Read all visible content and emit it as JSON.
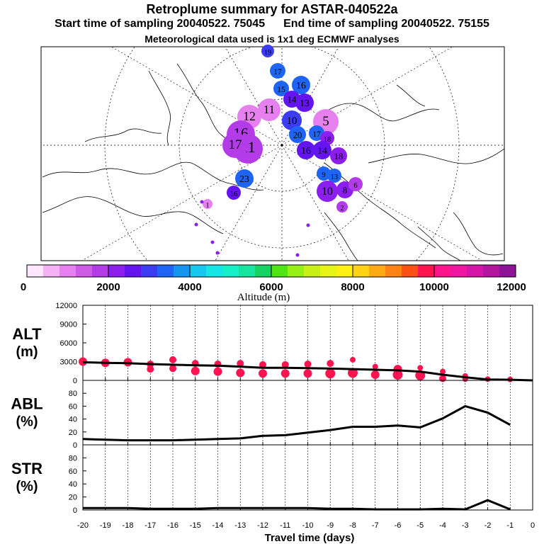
{
  "header": {
    "title": "Retroplume summary for ASTAR-040522a",
    "start_label": "Start time of sampling 20040522. 75045",
    "end_label": "End time of sampling 20040522. 75155",
    "met_label": "Meteorological data used is 1x1 deg ECMWF analyses"
  },
  "colorbar": {
    "title": "Altitude (m)",
    "ticks": [
      "0",
      "2000",
      "4000",
      "6000",
      "8000",
      "10000",
      "12000"
    ],
    "colors": [
      "#ffe6ff",
      "#f4b2f4",
      "#e680ee",
      "#d05ae8",
      "#b43ce8",
      "#8c1ef0",
      "#6414f0",
      "#3c3cf5",
      "#1e64f5",
      "#1496f0",
      "#14c8f0",
      "#14e6e6",
      "#14f0c8",
      "#14e6a0",
      "#14d264",
      "#50e614",
      "#96f014",
      "#c8f014",
      "#e6f514",
      "#fff014",
      "#ffd214",
      "#ffaa14",
      "#ff8214",
      "#ff5014",
      "#ff1450",
      "#ff148c",
      "#f014a0",
      "#d714a8",
      "#b414a0",
      "#8c1496"
    ]
  },
  "map": {
    "markers": [
      {
        "label": "19",
        "color": "#3c3cf5",
        "r": 9
      },
      {
        "label": "17",
        "color": "#1e64f5",
        "r": 11
      },
      {
        "label": "15",
        "color": "#1e64f5",
        "r": 11
      },
      {
        "label": "16",
        "color": "#1e64f5",
        "r": 13
      },
      {
        "label": "13",
        "color": "#6414f0",
        "r": 13
      },
      {
        "label": "14",
        "color": "#6414f0",
        "r": 12
      },
      {
        "label": "11",
        "color": "#e680ee",
        "r": 16
      },
      {
        "label": "12",
        "color": "#e680ee",
        "r": 17
      },
      {
        "label": "10",
        "color": "#3c3cf5",
        "r": 14
      },
      {
        "label": "5",
        "color": "#e680ee",
        "r": 18
      },
      {
        "label": "20",
        "color": "#1e64f5",
        "r": 12
      },
      {
        "label": "17",
        "color": "#1e64f5",
        "r": 11
      },
      {
        "label": "18",
        "color": "#8c1ef0",
        "r": 10
      },
      {
        "label": "16",
        "color": "#b43ce8",
        "r": 20
      },
      {
        "label": "11",
        "color": "#b43ce8",
        "r": 21
      },
      {
        "label": "17",
        "color": "#b43ce8",
        "r": 18
      },
      {
        "label": "16",
        "color": "#6414f0",
        "r": 13
      },
      {
        "label": "14",
        "color": "#6414f0",
        "r": 13
      },
      {
        "label": "18",
        "color": "#8c1ef0",
        "r": 12
      },
      {
        "label": "9",
        "color": "#1e64f5",
        "r": 10
      },
      {
        "label": "13",
        "color": "#1e64f5",
        "r": 10
      },
      {
        "label": "10",
        "color": "#8c1ef0",
        "r": 15
      },
      {
        "label": "8",
        "color": "#8c1ef0",
        "r": 12
      },
      {
        "label": "6",
        "color": "#b43ce8",
        "r": 10
      },
      {
        "label": "2",
        "color": "#b43ce8",
        "r": 8
      },
      {
        "label": "23",
        "color": "#1e64f5",
        "r": 13
      },
      {
        "label": "16",
        "color": "#6414f0",
        "r": 10
      },
      {
        "label": "1",
        "color": "#e680ee",
        "r": 7
      }
    ]
  },
  "chart_data": [
    {
      "type": "line",
      "title": "ALT (m)",
      "ylabel_top": "ALT",
      "ylabel_unit": "(m)",
      "x": [
        -20,
        -19,
        -18,
        -17,
        -16,
        -15,
        -14,
        -13,
        -12,
        -11,
        -10,
        -9,
        -8,
        -7,
        -6,
        -5,
        -4,
        -3,
        -2,
        -1,
        0
      ],
      "values": [
        2900,
        2800,
        2750,
        2600,
        2500,
        2400,
        2350,
        2200,
        2000,
        2000,
        1950,
        1900,
        1800,
        1700,
        1600,
        1400,
        900,
        500,
        150,
        100,
        0
      ],
      "ylim": [
        0,
        12000
      ],
      "yticks": [
        "12000",
        "9000",
        "6000",
        "3000",
        "0"
      ],
      "yticks_values": [
        12000,
        9000,
        6000,
        3000,
        0
      ],
      "scatter": [
        {
          "x": -20,
          "y": 3000,
          "s": 6
        },
        {
          "x": -19,
          "y": 2800,
          "s": 6
        },
        {
          "x": -18,
          "y": 2900,
          "s": 6
        },
        {
          "x": -17,
          "y": 2600,
          "s": 5
        },
        {
          "x": -17,
          "y": 1800,
          "s": 5
        },
        {
          "x": -16,
          "y": 3300,
          "s": 5
        },
        {
          "x": -16,
          "y": 1900,
          "s": 5
        },
        {
          "x": -15,
          "y": 2700,
          "s": 5
        },
        {
          "x": -15,
          "y": 1500,
          "s": 6
        },
        {
          "x": -14,
          "y": 2600,
          "s": 5
        },
        {
          "x": -14,
          "y": 1400,
          "s": 6
        },
        {
          "x": -13,
          "y": 2700,
          "s": 5
        },
        {
          "x": -13,
          "y": 1200,
          "s": 6
        },
        {
          "x": -12,
          "y": 2500,
          "s": 5
        },
        {
          "x": -12,
          "y": 1100,
          "s": 6
        },
        {
          "x": -11,
          "y": 2500,
          "s": 5
        },
        {
          "x": -11,
          "y": 1100,
          "s": 6
        },
        {
          "x": -10,
          "y": 2600,
          "s": 5
        },
        {
          "x": -10,
          "y": 1100,
          "s": 6
        },
        {
          "x": -9,
          "y": 2700,
          "s": 5
        },
        {
          "x": -9,
          "y": 1100,
          "s": 7
        },
        {
          "x": -8,
          "y": 3300,
          "s": 4
        },
        {
          "x": -8,
          "y": 1200,
          "s": 7
        },
        {
          "x": -7,
          "y": 2200,
          "s": 4
        },
        {
          "x": -7,
          "y": 900,
          "s": 6
        },
        {
          "x": -6,
          "y": 1800,
          "s": 6
        },
        {
          "x": -6,
          "y": 900,
          "s": 7
        },
        {
          "x": -5,
          "y": 2000,
          "s": 4
        },
        {
          "x": -5,
          "y": 800,
          "s": 7
        },
        {
          "x": -4,
          "y": 1400,
          "s": 4
        },
        {
          "x": -4,
          "y": 300,
          "s": 5
        },
        {
          "x": -3,
          "y": 700,
          "s": 4
        },
        {
          "x": -3,
          "y": 200,
          "s": 4
        },
        {
          "x": -2,
          "y": 200,
          "s": 4
        },
        {
          "x": -1,
          "y": 150,
          "s": 4
        }
      ]
    },
    {
      "type": "line",
      "title": "ABL (%)",
      "ylabel_top": "ABL",
      "ylabel_unit": "(%)",
      "x": [
        -20,
        -19,
        -18,
        -17,
        -16,
        -15,
        -14,
        -13,
        -12,
        -11,
        -10,
        -9,
        -8,
        -7,
        -6,
        -5,
        -4,
        -3,
        -2,
        -1,
        0
      ],
      "values": [
        9,
        8,
        7,
        7,
        7,
        8,
        9,
        10,
        14,
        15,
        19,
        23,
        28,
        28,
        30,
        27,
        41,
        60,
        50,
        31,
        null
      ],
      "ylim": [
        0,
        100
      ],
      "yticks": [
        "80",
        "60",
        "40",
        "20",
        "0"
      ],
      "yticks_values": [
        80,
        60,
        40,
        20,
        0
      ]
    },
    {
      "type": "line",
      "title": "STR (%)",
      "ylabel_top": "STR",
      "ylabel_unit": "(%)",
      "x": [
        -20,
        -19,
        -18,
        -17,
        -16,
        -15,
        -14,
        -13,
        -12,
        -11,
        -10,
        -9,
        -8,
        -7,
        -6,
        -5,
        -4,
        -3,
        -2,
        -1,
        0
      ],
      "values": [
        3,
        3,
        3,
        2,
        2,
        2,
        3,
        3,
        3,
        3,
        3,
        2,
        2,
        1,
        1,
        1,
        2,
        1,
        15,
        1,
        null
      ],
      "ylim": [
        0,
        100
      ],
      "yticks": [
        "80",
        "60",
        "40",
        "20",
        "0"
      ],
      "yticks_values": [
        80,
        60,
        40,
        20,
        0
      ]
    }
  ],
  "xaxis": {
    "label": "Travel time (days)",
    "ticks": [
      "-20",
      "-19",
      "-18",
      "-17",
      "-16",
      "-15",
      "-14",
      "-13",
      "-12",
      "-11",
      "-10",
      "-9",
      "-8",
      "-7",
      "-6",
      "-5",
      "-4",
      "-3",
      "-2",
      "-1",
      "0"
    ],
    "tick_values": [
      -20,
      -19,
      -18,
      -17,
      -16,
      -15,
      -14,
      -13,
      -12,
      -11,
      -10,
      -9,
      -8,
      -7,
      -6,
      -5,
      -4,
      -3,
      -2,
      -1,
      0
    ]
  },
  "colors": {
    "scatter": "#ff1450",
    "line": "#000000"
  }
}
